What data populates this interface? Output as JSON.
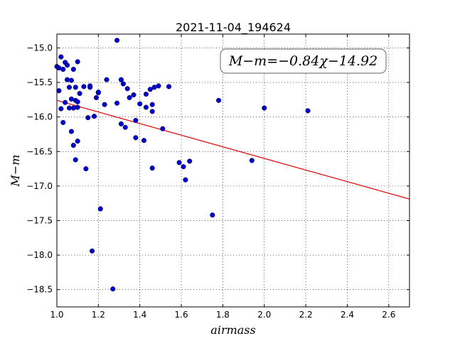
{
  "chart_data": {
    "type": "scatter",
    "title": "2021-11-04_194624",
    "xlabel": "airmass",
    "ylabel": "M−m",
    "xlim": [
      1.0,
      2.7
    ],
    "ylim": [
      -18.75,
      -14.8
    ],
    "x_ticks": [
      1.0,
      1.2,
      1.4,
      1.6,
      1.8,
      2.0,
      2.2,
      2.4,
      2.6
    ],
    "x_tick_labels": [
      "1.0",
      "1.2",
      "1.4",
      "1.6",
      "1.8",
      "2.0",
      "2.2",
      "2.4",
      "2.6"
    ],
    "y_ticks": [
      -15.0,
      -15.5,
      -16.0,
      -16.5,
      -17.0,
      -17.5,
      -18.0,
      -18.5
    ],
    "y_tick_labels": [
      "−15.0",
      "−15.5",
      "−16.0",
      "−16.5",
      "−17.0",
      "−17.5",
      "−18.0",
      "−18.5"
    ],
    "grid": true,
    "annotation": "M−m=−0.84χ−14.92",
    "point_color": "#0000cc",
    "fit_color": "#e00000",
    "fit": {
      "slope": -0.84,
      "intercept": -14.92
    },
    "points": [
      [
        1.0,
        -15.27
      ],
      [
        1.01,
        -15.62
      ],
      [
        1.01,
        -15.29
      ],
      [
        1.02,
        -15.88
      ],
      [
        1.02,
        -15.13
      ],
      [
        1.03,
        -15.31
      ],
      [
        1.03,
        -16.08
      ],
      [
        1.04,
        -15.21
      ],
      [
        1.04,
        -15.79
      ],
      [
        1.05,
        -15.46
      ],
      [
        1.05,
        -15.25
      ],
      [
        1.06,
        -15.57
      ],
      [
        1.06,
        -15.87
      ],
      [
        1.07,
        -15.47
      ],
      [
        1.07,
        -16.21
      ],
      [
        1.07,
        -15.74
      ],
      [
        1.08,
        -16.41
      ],
      [
        1.08,
        -15.31
      ],
      [
        1.08,
        -15.87
      ],
      [
        1.09,
        -15.57
      ],
      [
        1.09,
        -15.76
      ],
      [
        1.09,
        -16.62
      ],
      [
        1.1,
        -15.2
      ],
      [
        1.1,
        -15.86
      ],
      [
        1.1,
        -15.78
      ],
      [
        1.1,
        -16.35
      ],
      [
        1.11,
        -15.66
      ],
      [
        1.13,
        -15.56
      ],
      [
        1.14,
        -16.75
      ],
      [
        1.15,
        -16.01
      ],
      [
        1.16,
        -15.57
      ],
      [
        1.16,
        -15.55
      ],
      [
        1.17,
        -17.94
      ],
      [
        1.18,
        -15.99
      ],
      [
        1.19,
        -15.72
      ],
      [
        1.2,
        -15.65
      ],
      [
        1.2,
        -15.64
      ],
      [
        1.21,
        -17.33
      ],
      [
        1.23,
        -15.82
      ],
      [
        1.24,
        -15.46
      ],
      [
        1.27,
        -18.49
      ],
      [
        1.29,
        -14.89
      ],
      [
        1.29,
        -15.8
      ],
      [
        1.31,
        -15.46
      ],
      [
        1.31,
        -16.1
      ],
      [
        1.32,
        -15.52
      ],
      [
        1.33,
        -16.15
      ],
      [
        1.34,
        -15.59
      ],
      [
        1.35,
        -15.72
      ],
      [
        1.37,
        -15.68
      ],
      [
        1.38,
        -16.05
      ],
      [
        1.38,
        -16.3
      ],
      [
        1.4,
        -15.81
      ],
      [
        1.42,
        -16.34
      ],
      [
        1.43,
        -15.67
      ],
      [
        1.43,
        -15.86
      ],
      [
        1.45,
        -15.6
      ],
      [
        1.46,
        -15.82
      ],
      [
        1.46,
        -16.74
      ],
      [
        1.46,
        -15.92
      ],
      [
        1.47,
        -15.57
      ],
      [
        1.49,
        -15.55
      ],
      [
        1.51,
        -16.17
      ],
      [
        1.54,
        -15.56
      ],
      [
        1.59,
        -16.66
      ],
      [
        1.61,
        -16.72
      ],
      [
        1.62,
        -16.91
      ],
      [
        1.64,
        -16.64
      ],
      [
        1.75,
        -17.42
      ],
      [
        1.78,
        -15.76
      ],
      [
        1.94,
        -16.63
      ],
      [
        2.0,
        -15.87
      ],
      [
        2.21,
        -15.91
      ]
    ]
  }
}
